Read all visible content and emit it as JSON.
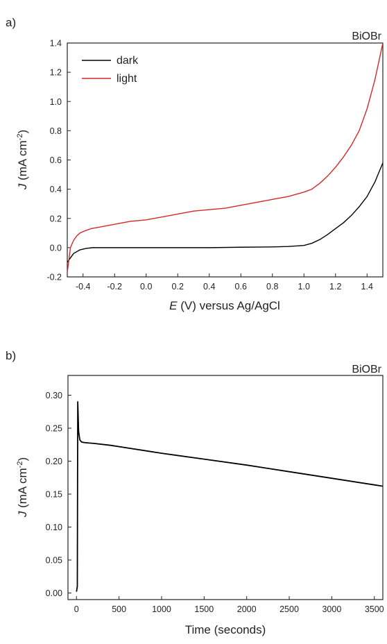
{
  "chart_data": [
    {
      "panel": "a)",
      "type": "line",
      "corner_label": "BiOBr",
      "title": "",
      "xlabel": "E (V) versus Ag/AgCl",
      "xlabel_italic": "E",
      "xlabel_rest": " (V) versus Ag/AgCl",
      "ylabel": "J (mA cm-2)",
      "ylabel_italic": "J",
      "ylabel_rest": " (mA cm",
      "ylabel_sup": "-2",
      "ylabel_close": ")",
      "xlim": [
        -0.5,
        1.5
      ],
      "ylim": [
        -0.2,
        1.4
      ],
      "xticks": [
        -0.4,
        -0.2,
        0.0,
        0.2,
        0.4,
        0.6,
        0.8,
        1.0,
        1.2,
        1.4
      ],
      "xtick_labels": [
        "-0.4",
        "-0.2",
        "0.0",
        "0.2",
        "0.4",
        "0.6",
        "0.8",
        "1.0",
        "1.2",
        "1.4"
      ],
      "yticks": [
        -0.2,
        0.0,
        0.2,
        0.4,
        0.6,
        0.8,
        1.0,
        1.2,
        1.4
      ],
      "ytick_labels": [
        "-0.2",
        "0.0",
        "0.2",
        "0.4",
        "0.6",
        "0.8",
        "1.0",
        "1.2",
        "1.4"
      ],
      "grid": false,
      "legend_position": "top-left",
      "series": [
        {
          "name": "dark",
          "color": "#000000",
          "x": [
            -0.5,
            -0.46,
            -0.42,
            -0.38,
            -0.34,
            -0.3,
            -0.2,
            0.0,
            0.2,
            0.4,
            0.6,
            0.8,
            0.9,
            1.0,
            1.05,
            1.1,
            1.15,
            1.2,
            1.25,
            1.3,
            1.35,
            1.4,
            1.45,
            1.5
          ],
          "y": [
            -0.1,
            -0.04,
            -0.015,
            -0.005,
            0.0,
            0.0,
            0.0,
            0.0,
            0.0,
            0.0,
            0.003,
            0.005,
            0.008,
            0.015,
            0.03,
            0.055,
            0.09,
            0.13,
            0.17,
            0.22,
            0.28,
            0.35,
            0.45,
            0.58
          ]
        },
        {
          "name": "light",
          "color": "#d62728",
          "x": [
            -0.5,
            -0.48,
            -0.46,
            -0.44,
            -0.42,
            -0.4,
            -0.35,
            -0.3,
            -0.2,
            -0.1,
            0.0,
            0.1,
            0.2,
            0.3,
            0.4,
            0.5,
            0.6,
            0.7,
            0.8,
            0.9,
            1.0,
            1.05,
            1.1,
            1.15,
            1.2,
            1.25,
            1.3,
            1.35,
            1.4,
            1.45,
            1.5
          ],
          "y": [
            -0.17,
            0.0,
            0.05,
            0.08,
            0.1,
            0.11,
            0.13,
            0.14,
            0.16,
            0.18,
            0.19,
            0.21,
            0.23,
            0.25,
            0.26,
            0.27,
            0.29,
            0.31,
            0.33,
            0.35,
            0.38,
            0.4,
            0.44,
            0.49,
            0.55,
            0.62,
            0.7,
            0.8,
            0.95,
            1.15,
            1.4
          ]
        }
      ]
    },
    {
      "panel": "b)",
      "type": "line",
      "corner_label": "BiOBr",
      "title": "",
      "xlabel": "Time (seconds)",
      "ylabel": "J (mA cm-2)",
      "ylabel_italic": "J",
      "ylabel_rest": " (mA cm",
      "ylabel_sup": "-2",
      "ylabel_close": ")",
      "xlim": [
        -100,
        3600
      ],
      "ylim": [
        -0.01,
        0.33
      ],
      "xticks": [
        0,
        500,
        1000,
        1500,
        2000,
        2500,
        3000,
        3500
      ],
      "xtick_labels": [
        "0",
        "500",
        "1000",
        "1500",
        "2000",
        "2500",
        "3000",
        "3500"
      ],
      "yticks": [
        0.0,
        0.05,
        0.1,
        0.15,
        0.2,
        0.25,
        0.3
      ],
      "ytick_labels": [
        "0.00",
        "0.05",
        "0.10",
        "0.15",
        "0.20",
        "0.25",
        "0.30"
      ],
      "grid": false,
      "series": [
        {
          "name": "",
          "color": "#000000",
          "x": [
            0,
            10,
            15,
            25,
            40,
            60,
            100,
            200,
            400,
            600,
            800,
            1000,
            1500,
            2000,
            2500,
            3000,
            3500,
            3600
          ],
          "y": [
            0.002,
            0.01,
            0.29,
            0.245,
            0.232,
            0.229,
            0.228,
            0.227,
            0.224,
            0.22,
            0.216,
            0.212,
            0.203,
            0.194,
            0.184,
            0.174,
            0.164,
            0.162
          ]
        }
      ]
    }
  ]
}
